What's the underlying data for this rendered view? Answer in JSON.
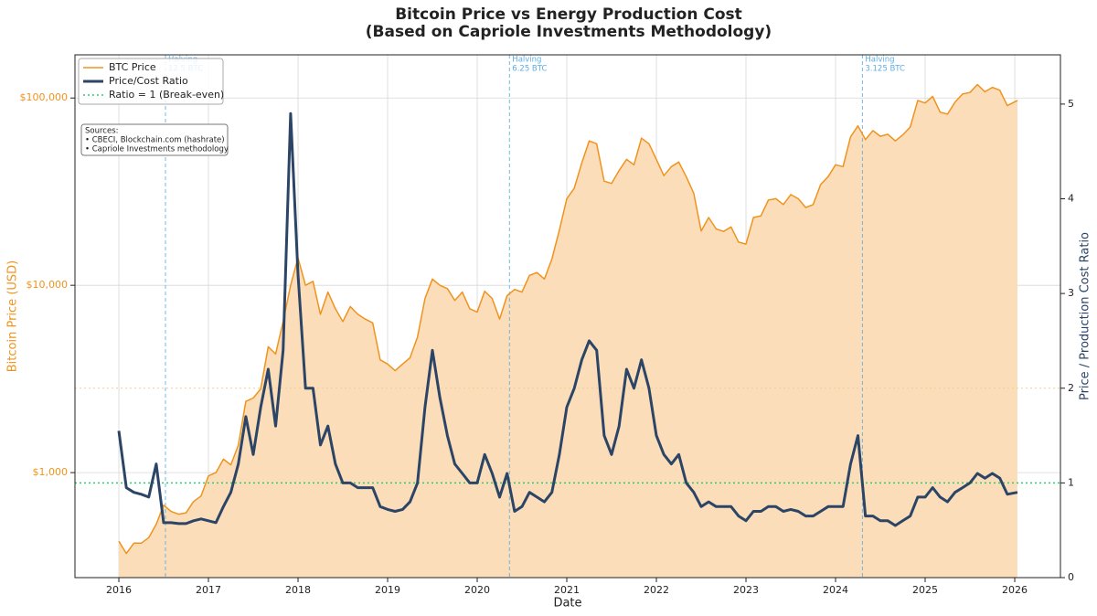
{
  "chart_data": {
    "type": "line",
    "title": [
      "Bitcoin Price vs Energy Production Cost",
      "(Based on Capriole Investments Methodology)"
    ],
    "xlabel": "Date",
    "ylabel": "Bitcoin Price (USD)",
    "y2label": "Price / Production Cost Ratio",
    "log_y": true,
    "grid": true,
    "legend": "upper left",
    "xlim": [
      2015.51,
      2026.51
    ],
    "xticks": [
      2016,
      2017,
      2018,
      2019,
      2020,
      2021,
      2022,
      2023,
      2024,
      2025,
      2026
    ],
    "ylim": [
      275,
      170000
    ],
    "yticks": [
      {
        "value": 1000,
        "label": "$1,000"
      },
      {
        "value": 10000,
        "label": "$10,000"
      },
      {
        "value": 100000,
        "label": "$100,000"
      }
    ],
    "y2lim": [
      0,
      5.52
    ],
    "y2ticks": [
      0,
      1,
      2,
      3,
      4,
      5
    ],
    "x": [
      2016,
      2016.083,
      2016.167,
      2016.25,
      2016.333,
      2016.417,
      2016.5,
      2016.583,
      2016.667,
      2016.75,
      2016.833,
      2016.917,
      2017,
      2017.083,
      2017.167,
      2017.25,
      2017.333,
      2017.417,
      2017.5,
      2017.583,
      2017.667,
      2017.75,
      2017.833,
      2017.917,
      2018,
      2018.083,
      2018.167,
      2018.25,
      2018.333,
      2018.417,
      2018.5,
      2018.583,
      2018.667,
      2018.75,
      2018.833,
      2018.917,
      2019,
      2019.083,
      2019.167,
      2019.25,
      2019.333,
      2019.417,
      2019.5,
      2019.583,
      2019.667,
      2019.75,
      2019.833,
      2019.917,
      2020,
      2020.083,
      2020.167,
      2020.25,
      2020.333,
      2020.417,
      2020.5,
      2020.583,
      2020.667,
      2020.75,
      2020.833,
      2020.917,
      2021,
      2021.083,
      2021.167,
      2021.25,
      2021.333,
      2021.417,
      2021.5,
      2021.583,
      2021.667,
      2021.75,
      2021.833,
      2021.917,
      2022,
      2022.083,
      2022.167,
      2022.25,
      2022.333,
      2022.417,
      2022.5,
      2022.583,
      2022.667,
      2022.75,
      2022.833,
      2022.917,
      2023,
      2023.083,
      2023.167,
      2023.25,
      2023.333,
      2023.417,
      2023.5,
      2023.583,
      2023.667,
      2023.75,
      2023.833,
      2023.917,
      2024,
      2024.083,
      2024.167,
      2024.25,
      2024.333,
      2024.417,
      2024.5,
      2024.583,
      2024.667,
      2024.75,
      2024.833,
      2024.917,
      2025,
      2025.083,
      2025.167,
      2025.25,
      2025.333,
      2025.417,
      2025.5,
      2025.583,
      2025.667,
      2025.75,
      2025.833,
      2025.917,
      2026.03
    ],
    "series": [
      {
        "name": "BTC Price",
        "color": "#f0931e",
        "fill": "#fbdcb5",
        "values": [
          430,
          370,
          420,
          420,
          450,
          530,
          670,
          620,
          600,
          610,
          700,
          750,
          960,
          1000,
          1180,
          1100,
          1400,
          2400,
          2500,
          2800,
          4700,
          4300,
          6400,
          10000,
          14000,
          10000,
          10500,
          7000,
          9200,
          7500,
          6400,
          7700,
          7000,
          6600,
          6300,
          4000,
          3800,
          3500,
          3800,
          4100,
          5300,
          8500,
          10800,
          10000,
          9600,
          8300,
          9200,
          7500,
          7200,
          9300,
          8500,
          6600,
          8800,
          9500,
          9200,
          11300,
          11700,
          10800,
          13800,
          19700,
          29000,
          33000,
          45000,
          59000,
          57000,
          36000,
          35000,
          41000,
          47000,
          44000,
          61000,
          57000,
          47000,
          38500,
          43000,
          45500,
          38000,
          31000,
          19500,
          23000,
          20000,
          19400,
          20500,
          17000,
          16600,
          23000,
          23500,
          28500,
          29000,
          27000,
          30500,
          29000,
          26000,
          27000,
          34500,
          38000,
          44000,
          43000,
          62000,
          71000,
          60000,
          67000,
          62500,
          64000,
          59000,
          63500,
          70000,
          97000,
          94000,
          102000,
          84000,
          82000,
          95000,
          105000,
          107000,
          118000,
          108000,
          114000,
          110000,
          91000,
          97000
        ]
      },
      {
        "name": "Price/Cost Ratio",
        "color": "#2c4566",
        "axis": "y2",
        "values": [
          1.55,
          0.95,
          0.9,
          0.88,
          0.85,
          1.2,
          0.58,
          0.58,
          0.57,
          0.57,
          0.6,
          0.62,
          0.6,
          0.58,
          0.75,
          0.9,
          1.2,
          1.7,
          1.3,
          1.8,
          2.2,
          1.6,
          2.4,
          4.9,
          3.2,
          2.0,
          2.0,
          1.4,
          1.6,
          1.2,
          1.0,
          1.0,
          0.95,
          0.95,
          0.95,
          0.75,
          0.72,
          0.7,
          0.72,
          0.8,
          1.0,
          1.8,
          2.4,
          1.9,
          1.5,
          1.2,
          1.1,
          1.0,
          1.0,
          1.3,
          1.1,
          0.85,
          1.1,
          0.7,
          0.75,
          0.9,
          0.85,
          0.8,
          0.9,
          1.3,
          1.8,
          2.0,
          2.3,
          2.5,
          2.4,
          1.5,
          1.3,
          1.6,
          2.2,
          2.0,
          2.3,
          2.0,
          1.5,
          1.3,
          1.2,
          1.3,
          1.0,
          0.9,
          0.75,
          0.8,
          0.75,
          0.75,
          0.75,
          0.65,
          0.6,
          0.7,
          0.7,
          0.75,
          0.75,
          0.7,
          0.72,
          0.7,
          0.65,
          0.65,
          0.7,
          0.75,
          0.75,
          0.75,
          1.2,
          1.5,
          0.65,
          0.65,
          0.6,
          0.6,
          0.55,
          0.6,
          0.65,
          0.85,
          0.85,
          0.95,
          0.85,
          0.8,
          0.9,
          0.95,
          1.0,
          1.1,
          1.05,
          1.1,
          1.05,
          0.88,
          0.9
        ]
      }
    ],
    "ref_lines": [
      {
        "name": "Ratio = 1 (Break-even)",
        "value": 1,
        "color": "#2ecc71"
      },
      {
        "value": 2,
        "color": "#efcf94"
      }
    ],
    "halvings": [
      {
        "x": 2016.52,
        "text": [
          "Halving",
          "12.5 BTC"
        ]
      },
      {
        "x": 2020.36,
        "text": [
          "Halving",
          "6.25 BTC"
        ]
      },
      {
        "x": 2024.3,
        "text": [
          "Halving",
          "3.125 BTC"
        ]
      }
    ],
    "halving_color": "#5dade2",
    "sources": [
      "Sources:",
      "• CBECI, Blockchain.com (hashrate)",
      "• Capriole Investments methodology"
    ]
  }
}
